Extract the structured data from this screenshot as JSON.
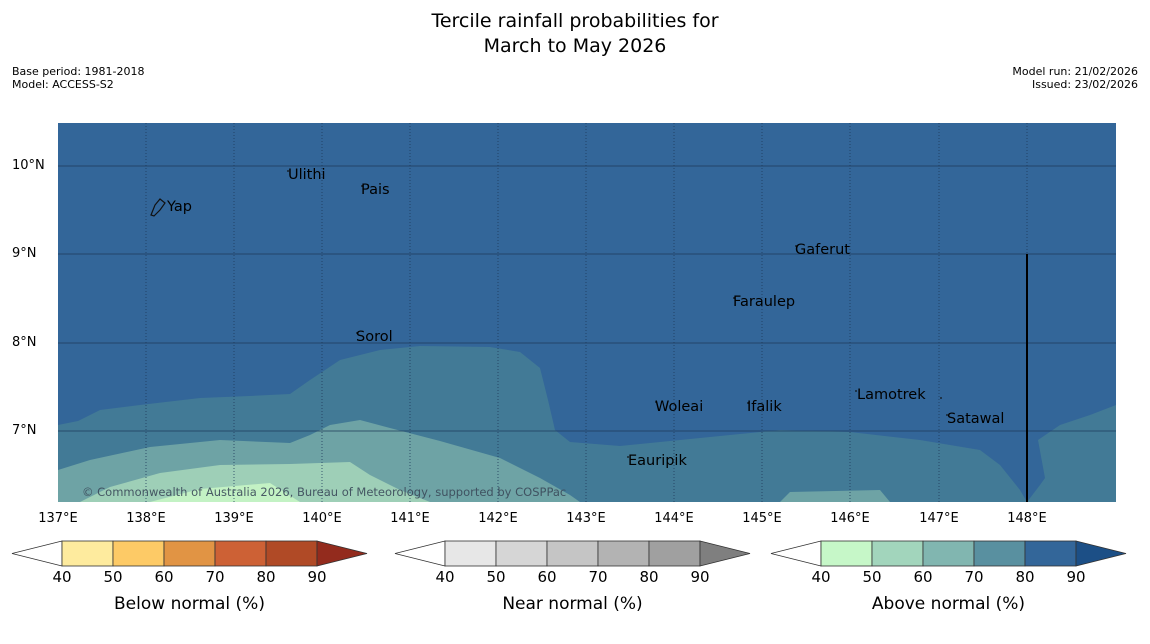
{
  "header": {
    "title_line1": "Tercile rainfall probabilities for",
    "title_line2": "March to May 2026",
    "base_period": "Base period: 1981-2018",
    "model": "Model: ACCESS-S2",
    "model_run": "Model run: 21/02/2026",
    "issued": "Issued: 23/02/2026"
  },
  "map": {
    "lat_labels": [
      "10°N",
      "9°N",
      "8°N",
      "7°N"
    ],
    "lon_labels": [
      "137°E",
      "138°E",
      "139°E",
      "140°E",
      "141°E",
      "142°E",
      "143°E",
      "144°E",
      "145°E",
      "146°E",
      "147°E",
      "148°E"
    ],
    "places": [
      "Yap",
      "Ulithi",
      "Pais",
      "Gaferut",
      "Faraulep",
      "Sorol",
      "Lamotrek",
      "Woleai",
      "Ifalik",
      "Satawal",
      "Eauripik"
    ],
    "copyright": "© Commonwealth of Australia 2026, Bureau of Meteorology, supported by COSPPac"
  },
  "colorbars": [
    {
      "name": "below",
      "title": "Below normal (%)",
      "ticks": [
        "40",
        "50",
        "60",
        "70",
        "80",
        "90"
      ],
      "colors": [
        "#ffffff",
        "#feeb9e",
        "#fdca66",
        "#e19444",
        "#cd6135",
        "#b04a26",
        "#932b1d"
      ]
    },
    {
      "name": "near",
      "title": "Near normal (%)",
      "ticks": [
        "40",
        "50",
        "60",
        "70",
        "80",
        "90"
      ],
      "colors": [
        "#ffffff",
        "#e7e7e7",
        "#d6d6d6",
        "#c5c5c5",
        "#b3b3b3",
        "#a0a0a0",
        "#7f7f7f"
      ]
    },
    {
      "name": "above",
      "title": "Above normal (%)",
      "ticks": [
        "40",
        "50",
        "60",
        "70",
        "80",
        "90"
      ],
      "colors": [
        "#ffffff",
        "#c6f7c8",
        "#a2d5bc",
        "#81b6b0",
        "#5990a0",
        "#336699",
        "#1c4f86"
      ]
    }
  ]
}
